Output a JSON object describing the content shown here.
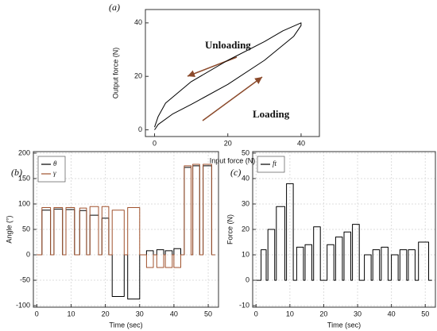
{
  "chart_data": [
    {
      "type": "line",
      "panel_label": "(a)",
      "x_label": "Input force (N)",
      "y_label": "Output force (N)",
      "annotations": [
        "Unloading",
        "Loading"
      ],
      "x": [
        0,
        1,
        5,
        10,
        20,
        30,
        38,
        40,
        40,
        35,
        30,
        20,
        10,
        3,
        1,
        0
      ],
      "values": [
        0,
        2,
        6,
        9.5,
        17,
        26,
        35,
        39,
        40,
        37,
        33,
        26,
        18,
        10,
        5,
        1
      ],
      "color": "#000000",
      "xlim": [
        -2.5,
        45
      ],
      "ylim": [
        -2.5,
        45
      ],
      "xticks": [
        0,
        20,
        40
      ],
      "yticks": [
        0,
        20,
        40
      ],
      "grid": false
    },
    {
      "type": "line",
      "panel_label": "(b)",
      "x_label": "Time (sec)",
      "y_label": "Angle (°)",
      "x": [
        0,
        1.5,
        1.5,
        4,
        4,
        5,
        5,
        7.5,
        7.5,
        8.5,
        8.5,
        11,
        11,
        12.5,
        12.5,
        14.5,
        14.5,
        15.5,
        15.5,
        18,
        18,
        19,
        19,
        21,
        21,
        22,
        22,
        25.5,
        25.5,
        26.5,
        26.5,
        30,
        30,
        32,
        32,
        34,
        34,
        35,
        35,
        37,
        37,
        37.5,
        37.5,
        39.5,
        39.5,
        40,
        40,
        42,
        42,
        43,
        43,
        45,
        45,
        45.5,
        45.5,
        47.5,
        47.5,
        48.5,
        48.5,
        51,
        51,
        52
      ],
      "series": [
        {
          "name": "θ",
          "color": "#000000",
          "values": [
            0,
            0,
            88,
            88,
            0,
            0,
            90,
            90,
            0,
            0,
            89,
            89,
            0,
            0,
            87,
            87,
            0,
            0,
            78,
            78,
            0,
            0,
            72,
            72,
            0,
            0,
            -82,
            -82,
            0,
            0,
            -87,
            -87,
            0,
            0,
            8,
            8,
            0,
            0,
            10,
            10,
            0,
            0,
            8,
            8,
            0,
            0,
            12,
            12,
            0,
            0,
            172,
            172,
            0,
            0,
            175,
            175,
            0,
            0,
            175,
            175,
            0,
            0
          ]
        },
        {
          "name": "γ",
          "color": "#a0522d",
          "values": [
            0,
            0,
            93,
            93,
            0,
            0,
            93,
            93,
            0,
            0,
            93,
            93,
            0,
            0,
            92,
            92,
            0,
            0,
            95,
            95,
            0,
            0,
            95,
            95,
            0,
            0,
            88,
            88,
            0,
            0,
            93,
            93,
            0,
            0,
            -25,
            -25,
            0,
            0,
            -25,
            -25,
            0,
            0,
            -25,
            -25,
            0,
            0,
            -25,
            -25,
            0,
            0,
            175,
            175,
            0,
            0,
            178,
            178,
            0,
            0,
            178,
            178,
            0,
            0
          ]
        }
      ],
      "xlim": [
        -1,
        53
      ],
      "ylim": [
        -103,
        203
      ],
      "xticks": [
        0,
        10,
        20,
        30,
        40,
        50
      ],
      "yticks": [
        -100,
        -50,
        0,
        50,
        100,
        150,
        200
      ],
      "grid": true,
      "legend": "upper-left"
    },
    {
      "type": "line",
      "panel_label": "(c)",
      "x_label": "Time (sec)",
      "y_label": "Force (N)",
      "x": [
        0,
        1.5,
        1.5,
        3,
        3,
        3.5,
        3.5,
        5.5,
        5.5,
        6,
        6,
        8.5,
        8.5,
        9,
        9,
        11,
        11,
        12,
        12,
        14,
        14,
        14.5,
        14.5,
        16.5,
        16.5,
        17,
        17,
        19,
        19,
        21,
        21,
        23,
        23,
        23.5,
        23.5,
        25.5,
        25.5,
        26,
        26,
        28,
        28,
        28.5,
        28.5,
        30.5,
        30.5,
        32,
        32,
        34,
        34,
        34.5,
        34.5,
        36.5,
        36.5,
        37,
        37,
        39,
        39,
        40,
        40,
        42,
        42,
        42.5,
        42.5,
        44.5,
        44.5,
        45,
        45,
        47,
        47,
        48,
        48,
        51,
        51,
        52
      ],
      "series": [
        {
          "name": "ft",
          "color": "#000000",
          "values": [
            0,
            0,
            12,
            12,
            0,
            0,
            20,
            20,
            0,
            0,
            29,
            29,
            0,
            0,
            38,
            38,
            0,
            0,
            13,
            13,
            0,
            0,
            14,
            14,
            0,
            0,
            21,
            21,
            0,
            0,
            14,
            14,
            0,
            0,
            17,
            17,
            0,
            0,
            19,
            19,
            0,
            0,
            22,
            22,
            0,
            0,
            10,
            10,
            0,
            0,
            12,
            12,
            0,
            0,
            13,
            13,
            0,
            0,
            10,
            10,
            0,
            0,
            12,
            12,
            0,
            0,
            12,
            12,
            0,
            0,
            15,
            15,
            0,
            0
          ]
        }
      ],
      "xlim": [
        -1,
        53
      ],
      "ylim": [
        -10.6,
        50.6
      ],
      "xticks": [
        0,
        10,
        20,
        30,
        40,
        50
      ],
      "yticks": [
        -10,
        0,
        10,
        20,
        30,
        40,
        50
      ],
      "grid": true,
      "legend": "upper-left"
    }
  ]
}
